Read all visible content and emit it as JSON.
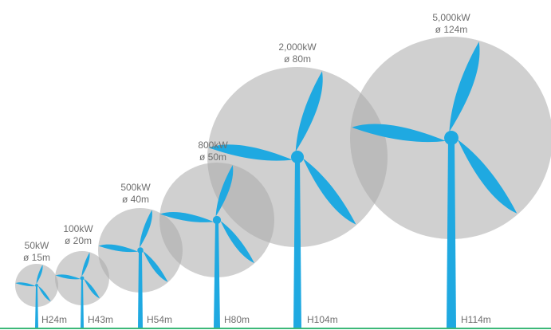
{
  "turbines": [
    {
      "power": "50kW",
      "diameter": "ø 15m",
      "height": "H24m"
    },
    {
      "power": "100kW",
      "diameter": "ø 20m",
      "height": "H43m"
    },
    {
      "power": "500kW",
      "diameter": "ø 40m",
      "height": "H54m"
    },
    {
      "power": "800kW",
      "diameter": "ø 50m",
      "height": "H80m"
    },
    {
      "power": "2,000kW",
      "diameter": "ø 80m",
      "height": "H104m"
    },
    {
      "power": "5,000kW",
      "diameter": "ø 124m",
      "height": "H114m"
    }
  ],
  "colors": {
    "rotor_disc": "#aaaaaa",
    "turbine": "#1fa9e1",
    "ground": "#3cb878",
    "label_text": "#6f6f6f"
  }
}
